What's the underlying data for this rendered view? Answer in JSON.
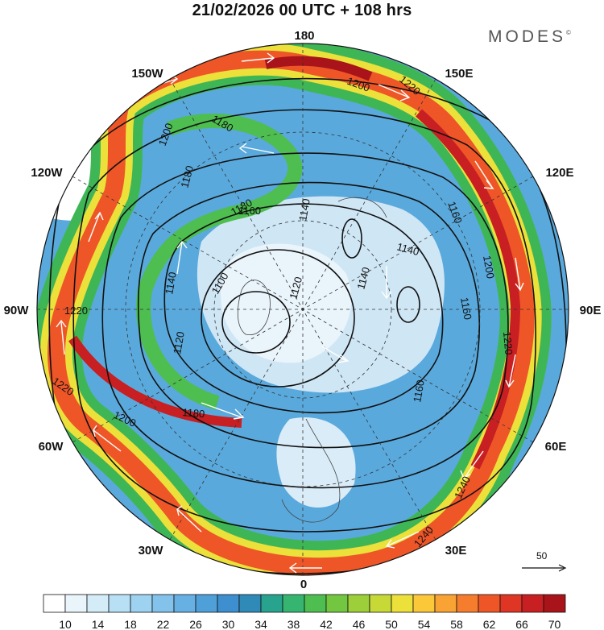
{
  "title": "21/02/2026  00 UTC  + 108 hrs",
  "brand": "MODES",
  "brand_mark": "©",
  "longitude_labels": {
    "n180": "180",
    "e150": "150E",
    "e120": "120E",
    "e90": "90E",
    "e60": "60E",
    "e30": "30E",
    "s0": "0",
    "w30": "30W",
    "w60": "60W",
    "w90": "90W",
    "w120": "120W",
    "w150": "150W"
  },
  "contour_labels": [
    "1200",
    "1220",
    "1200",
    "1180",
    "1180",
    "1160",
    "1160",
    "1140",
    "1100",
    "1120",
    "1140",
    "1120",
    "1140",
    "1180",
    "1200",
    "1220",
    "1220",
    "1180",
    "1160",
    "1140",
    "1200",
    "1220",
    "1240",
    "1240",
    "1160"
  ],
  "reference_vector": {
    "label": "50"
  },
  "colorbar": {
    "colors": [
      "#ffffff",
      "#eaf5fb",
      "#d3ecf8",
      "#b8e0f5",
      "#9dd2f1",
      "#82c2eb",
      "#66b0e3",
      "#4f9fd9",
      "#3d8fcf",
      "#2f8ab8",
      "#28a38e",
      "#35b56f",
      "#4dbe4f",
      "#73c63f",
      "#9ccf3a",
      "#c6d937",
      "#ece03a",
      "#fbc83a",
      "#f9a334",
      "#f57d2d",
      "#ee5628",
      "#df3524",
      "#c81f22",
      "#a81419"
    ],
    "labels": [
      "10",
      "14",
      "18",
      "22",
      "26",
      "30",
      "34",
      "38",
      "42",
      "46",
      "50",
      "54",
      "58",
      "62",
      "66",
      "70"
    ]
  }
}
